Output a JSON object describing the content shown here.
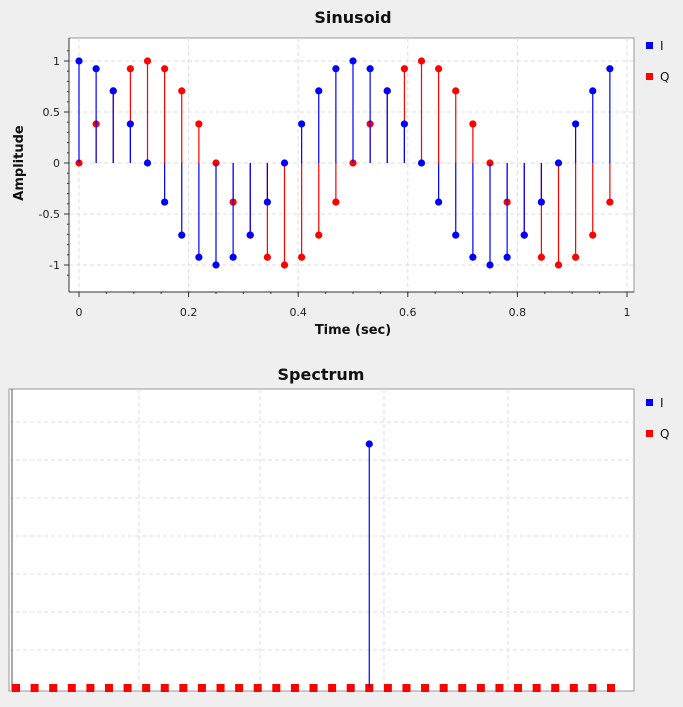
{
  "chart_data": [
    {
      "type": "stem",
      "title": "Sinusoid",
      "xlabel": "Time (sec)",
      "ylabel": "Amplitude",
      "xlim": [
        0,
        1
      ],
      "ylim": [
        -1.2,
        1.2
      ],
      "xticks": [
        "0",
        "0.2",
        "0.4",
        "0.6",
        "0.8",
        "1"
      ],
      "yticks": [
        "1",
        "0.5",
        "0",
        "-0.5",
        "-1"
      ],
      "grid": true,
      "legend_position": "right",
      "x": [
        0,
        0.03125,
        0.0625,
        0.09375,
        0.125,
        0.15625,
        0.1875,
        0.21875,
        0.25,
        0.28125,
        0.3125,
        0.34375,
        0.375,
        0.40625,
        0.4375,
        0.46875,
        0.5,
        0.53125,
        0.5625,
        0.59375,
        0.625,
        0.65625,
        0.6875,
        0.71875,
        0.75,
        0.78125,
        0.8125,
        0.84375,
        0.875,
        0.90625,
        0.9375,
        0.96875
      ],
      "series": [
        {
          "name": "I",
          "color": "#0000ff",
          "values": [
            1,
            0.924,
            0.707,
            0.383,
            0,
            -0.383,
            -0.707,
            -0.924,
            -1,
            -0.924,
            -0.707,
            -0.383,
            0,
            0.383,
            0.707,
            0.924,
            1,
            0.924,
            0.707,
            0.383,
            0,
            -0.383,
            -0.707,
            -0.924,
            -1,
            -0.924,
            -0.707,
            -0.383,
            0,
            0.383,
            0.707,
            0.924
          ]
        },
        {
          "name": "Q",
          "color": "#ff0000",
          "values": [
            0,
            0.383,
            0.707,
            0.924,
            1,
            0.924,
            0.707,
            0.383,
            0,
            -0.383,
            -0.707,
            -0.924,
            -1,
            -0.924,
            -0.707,
            -0.383,
            0,
            0.383,
            0.707,
            0.924,
            1,
            0.924,
            0.707,
            0.383,
            0,
            -0.383,
            -0.707,
            -0.924,
            -1,
            -0.924,
            -0.707,
            -0.383
          ]
        }
      ]
    },
    {
      "type": "stem",
      "title": "Spectrum",
      "xlabel": "",
      "ylabel": "",
      "grid": true,
      "legend_position": "right",
      "ylim": [
        0,
        1.15
      ],
      "x": [
        0,
        1,
        2,
        3,
        4,
        5,
        6,
        7,
        8,
        9,
        10,
        11,
        12,
        13,
        14,
        15,
        16,
        17,
        18,
        19,
        20,
        21,
        22,
        23,
        24,
        25,
        26,
        27,
        28,
        29,
        30,
        31,
        32
      ],
      "series": [
        {
          "name": "I",
          "color": "#0000ff",
          "values": [
            0,
            0,
            0,
            0,
            0,
            0,
            0,
            0,
            0,
            0,
            0,
            0,
            0,
            0,
            0,
            0,
            0,
            0,
            0,
            1,
            0,
            0,
            0,
            0,
            0,
            0,
            0,
            0,
            0,
            0,
            0,
            0,
            0
          ]
        },
        {
          "name": "Q",
          "color": "#ff0000",
          "values": [
            0,
            0,
            0,
            0,
            0,
            0,
            0,
            0,
            0,
            0,
            0,
            0,
            0,
            0,
            0,
            0,
            0,
            0,
            0,
            0,
            0,
            0,
            0,
            0,
            0,
            0,
            0,
            0,
            0,
            0,
            0,
            0,
            0
          ]
        }
      ]
    }
  ]
}
